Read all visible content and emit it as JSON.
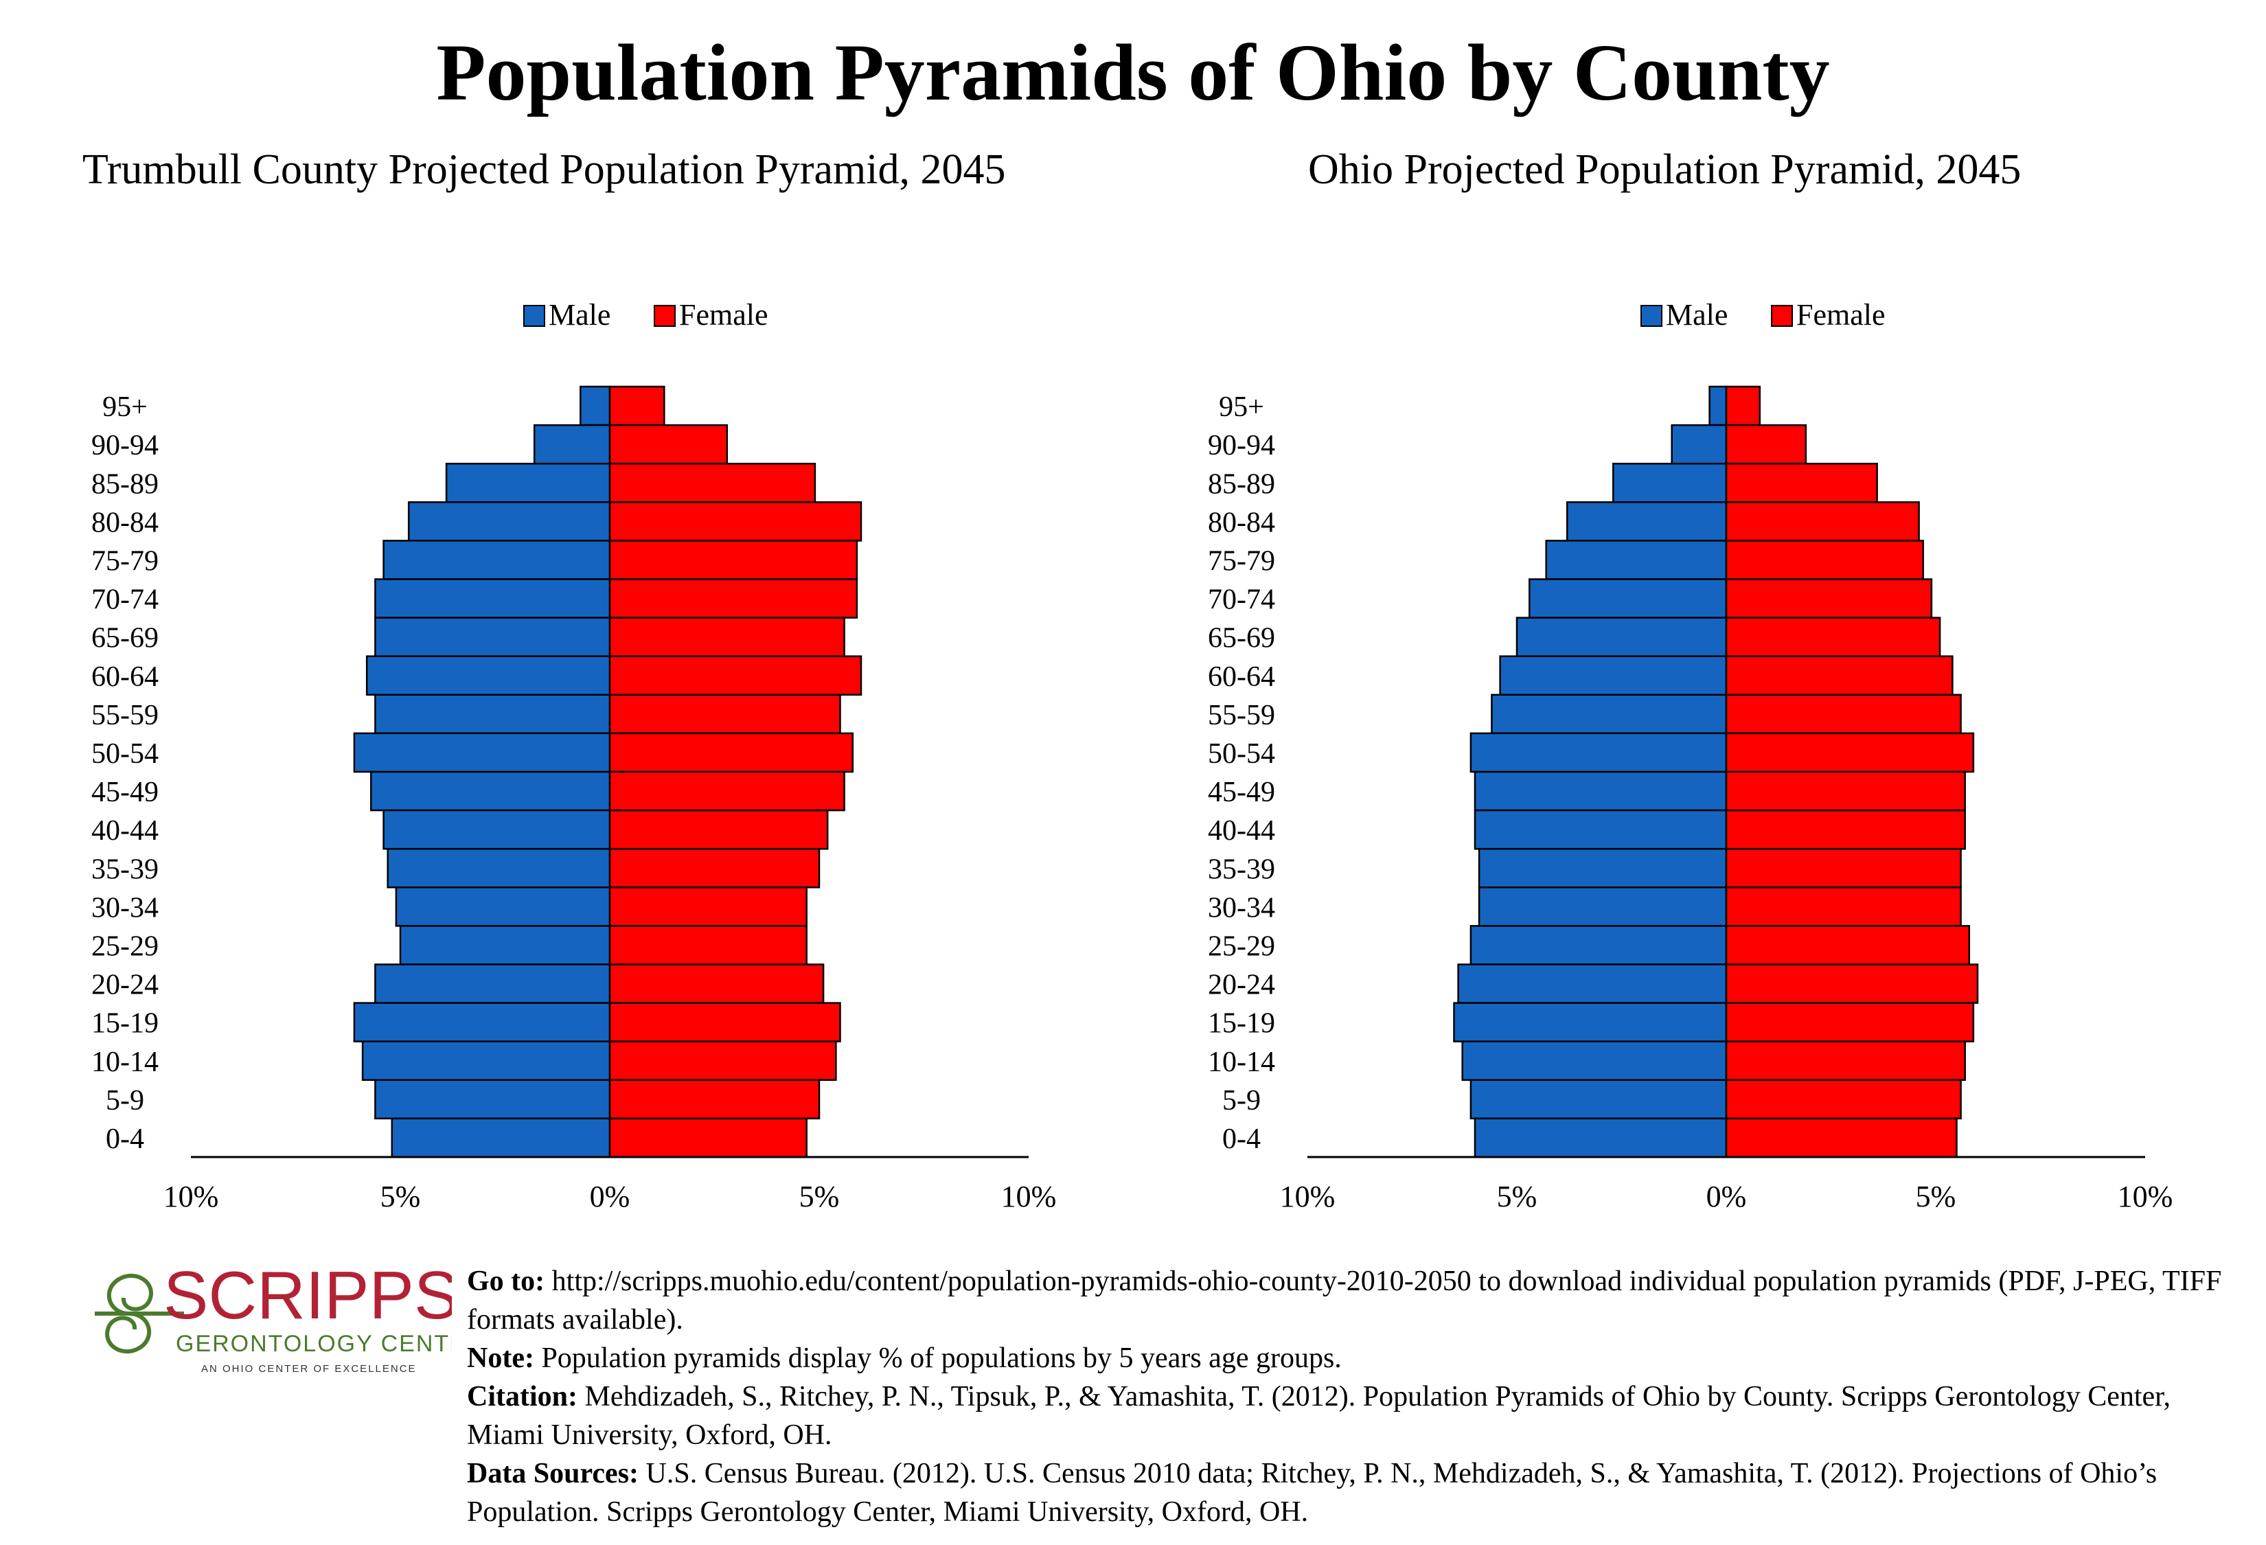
{
  "main_title": "Population Pyramids of Ohio by County",
  "colors": {
    "male": "#1565C0",
    "female": "#FF0000"
  },
  "chart_data": [
    {
      "type": "bar",
      "title": "Trumbull County Projected Population Pyramid, 2045",
      "legend": [
        "Male",
        "Female"
      ],
      "legend_position": "top-center",
      "categories": [
        "95+",
        "90-94",
        "85-89",
        "80-84",
        "75-79",
        "70-74",
        "65-69",
        "60-64",
        "55-59",
        "50-54",
        "45-49",
        "40-44",
        "35-39",
        "30-34",
        "25-29",
        "20-24",
        "15-19",
        "10-14",
        "5-9",
        "0-4"
      ],
      "series": [
        {
          "name": "Male",
          "values": [
            0.7,
            1.8,
            3.9,
            4.8,
            5.4,
            5.6,
            5.6,
            5.8,
            5.6,
            6.1,
            5.7,
            5.4,
            5.3,
            5.1,
            5.0,
            5.6,
            6.1,
            5.9,
            5.6,
            5.2
          ]
        },
        {
          "name": "Female",
          "values": [
            1.3,
            2.8,
            4.9,
            6.0,
            5.9,
            5.9,
            5.6,
            6.0,
            5.5,
            5.8,
            5.6,
            5.2,
            5.0,
            4.7,
            4.7,
            5.1,
            5.5,
            5.4,
            5.0,
            4.7
          ]
        }
      ],
      "x_ticks": [
        "10%",
        "5%",
        "0%",
        "5%",
        "10%"
      ],
      "xlim": [
        -10,
        10
      ]
    },
    {
      "type": "bar",
      "title": "Ohio Projected Population Pyramid, 2045",
      "legend": [
        "Male",
        "Female"
      ],
      "legend_position": "top-center",
      "categories": [
        "95+",
        "90-94",
        "85-89",
        "80-84",
        "75-79",
        "70-74",
        "65-69",
        "60-64",
        "55-59",
        "50-54",
        "45-49",
        "40-44",
        "35-39",
        "30-34",
        "25-29",
        "20-24",
        "15-19",
        "10-14",
        "5-9",
        "0-4"
      ],
      "series": [
        {
          "name": "Male",
          "values": [
            0.4,
            1.3,
            2.7,
            3.8,
            4.3,
            4.7,
            5.0,
            5.4,
            5.6,
            6.1,
            6.0,
            6.0,
            5.9,
            5.9,
            6.1,
            6.4,
            6.5,
            6.3,
            6.1,
            6.0
          ]
        },
        {
          "name": "Female",
          "values": [
            0.8,
            1.9,
            3.6,
            4.6,
            4.7,
            4.9,
            5.1,
            5.4,
            5.6,
            5.9,
            5.7,
            5.7,
            5.6,
            5.6,
            5.8,
            6.0,
            5.9,
            5.7,
            5.6,
            5.5
          ]
        }
      ],
      "x_ticks": [
        "10%",
        "5%",
        "0%",
        "5%",
        "10%"
      ],
      "xlim": [
        -10,
        10
      ]
    }
  ],
  "logo": {
    "name": "SCRIPPS",
    "line2": "GERONTOLOGY CENTER",
    "line3": "AN OHIO CENTER OF EXCELLENCE",
    "colors": {
      "wordmark": "#B22234",
      "subtext": "#4B7B2E"
    }
  },
  "footer": {
    "goto_label": "Go to:",
    "goto_text": " http://scripps.muohio.edu/content/population-pyramids-ohio-county-2010-2050 to download individual population pyramids (PDF, J-PEG, TIFF formats available).",
    "note_label": "Note:",
    "note_text": " Population pyramids display % of populations by 5 years age groups.",
    "citation_label": "Citation:",
    "citation_text": " Mehdizadeh, S., Ritchey, P. N., Tipsuk, P., & Yamashita, T. (2012). Population Pyramids of Ohio by County. Scripps Gerontology Center, Miami University, Oxford, OH.",
    "sources_label": "Data Sources:",
    "sources_text": " U.S. Census Bureau. (2012). U.S. Census 2010 data; Ritchey, P. N., Mehdizadeh, S., & Yamashita, T. (2012). Projections of Ohio’s Population. Scripps Gerontology Center, Miami University, Oxford, OH."
  }
}
